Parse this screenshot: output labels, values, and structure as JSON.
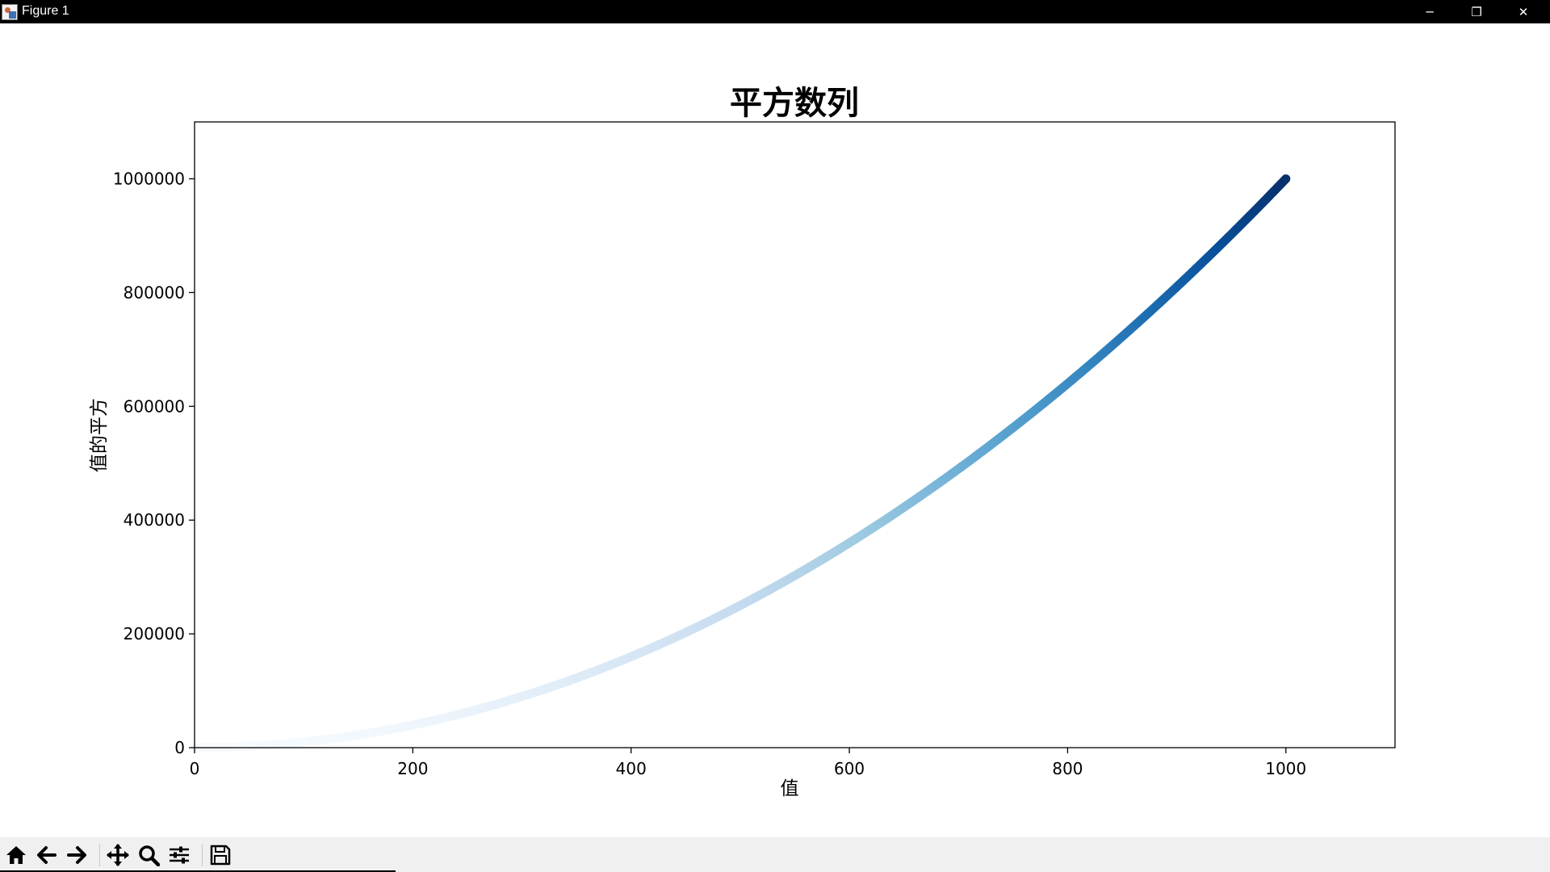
{
  "window": {
    "title": "Figure 1",
    "controls": {
      "minimize": "─",
      "maximize": "❐",
      "close": "✕"
    }
  },
  "toolbar": {
    "buttons": [
      {
        "name": "home",
        "icon": "home-icon"
      },
      {
        "name": "back",
        "icon": "arrow-left-icon"
      },
      {
        "name": "forward",
        "icon": "arrow-right-icon"
      },
      {
        "name": "pan",
        "icon": "move-icon"
      },
      {
        "name": "zoom",
        "icon": "magnifier-icon"
      },
      {
        "name": "configure-subplots",
        "icon": "sliders-icon"
      },
      {
        "name": "save",
        "icon": "floppy-disk-icon"
      }
    ]
  },
  "chart_data": {
    "type": "scatter",
    "title": "平方数列",
    "xlabel": "值",
    "ylabel": "值的平方",
    "xlim": [
      0,
      1100
    ],
    "ylim": [
      0,
      1100000
    ],
    "xticks": [
      0,
      200,
      400,
      600,
      800,
      1000
    ],
    "yticks": [
      0,
      200000,
      400000,
      600000,
      800000,
      1000000
    ],
    "x_range": [
      1,
      1000
    ],
    "function": "y = x^2",
    "colormap": "Blues",
    "color_low": "#f7fbff",
    "color_high": "#08306b",
    "grid": false,
    "legend": "none"
  }
}
